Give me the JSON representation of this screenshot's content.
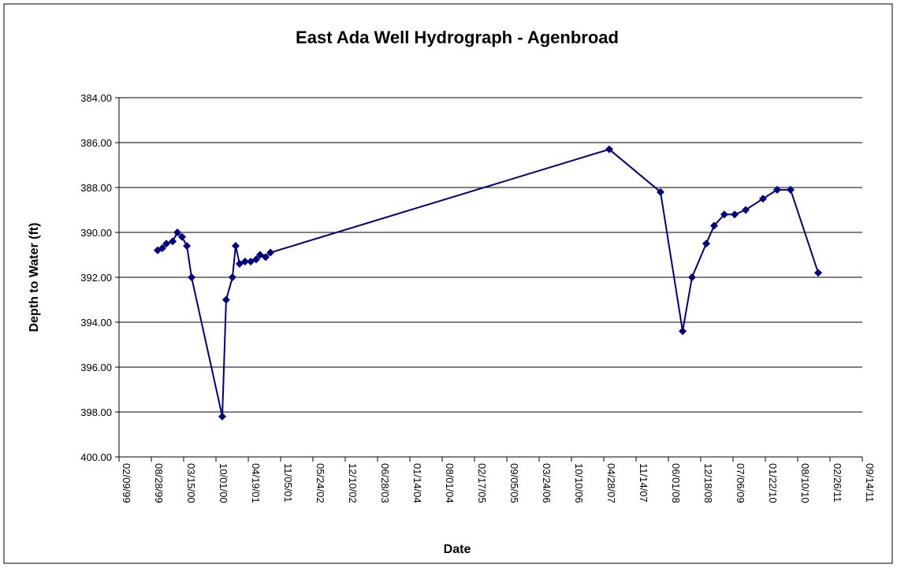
{
  "chart_data": {
    "type": "line",
    "title": "East Ada Well Hydrograph - Agenbroad",
    "x_label": "Date",
    "y_label": "Depth to Water (ft)",
    "x": [
      "10/06/99",
      "11/04/99",
      "11/29/99",
      "01/07/00",
      "02/05/00",
      "03/05/00",
      "04/04/00",
      "05/03/00",
      "11/09/00",
      "12/03/00",
      "01/11/01",
      "01/31/01",
      "02/24/01",
      "03/30/01",
      "05/04/01",
      "06/07/01",
      "07/01/01",
      "08/04/01",
      "09/03/01",
      "06/01/07",
      "04/13/08",
      "08/28/08",
      "10/25/08",
      "01/21/09",
      "03/11/09",
      "05/13/09",
      "07/16/09",
      "09/22/09",
      "01/07/10",
      "04/05/10",
      "06/27/10",
      "12/15/10"
    ],
    "series": [
      {
        "name": "Depth to Water",
        "color": "#000080",
        "values": [
          390.8,
          390.7,
          390.5,
          390.4,
          390.0,
          390.2,
          390.6,
          392.0,
          398.2,
          393.0,
          392.0,
          390.6,
          391.4,
          391.3,
          391.3,
          391.2,
          391.0,
          391.1,
          390.9,
          386.3,
          388.2,
          394.4,
          392.0,
          390.5,
          389.7,
          389.2,
          389.2,
          389.0,
          388.5,
          388.1,
          388.1,
          391.8
        ]
      }
    ],
    "xlim": [
      "02/09/99",
      "09/14/11"
    ],
    "xticks": [
      "02/09/99",
      "08/28/99",
      "03/15/00",
      "10/01/00",
      "04/19/01",
      "11/05/01",
      "05/24/02",
      "12/10/02",
      "06/28/03",
      "01/14/04",
      "08/01/04",
      "02/17/05",
      "09/05/05",
      "03/24/06",
      "10/10/06",
      "04/28/07",
      "11/14/07",
      "06/01/08",
      "12/18/08",
      "07/06/09",
      "01/22/10",
      "08/10/10",
      "02/26/11",
      "09/14/11"
    ],
    "ylim": [
      384,
      400
    ],
    "y_inverted": true,
    "yticks": [
      {
        "value": 384,
        "label": "384.00"
      },
      {
        "value": 386,
        "label": "386.00"
      },
      {
        "value": 388,
        "label": "388.00"
      },
      {
        "value": 390,
        "label": "390.00"
      },
      {
        "value": 392,
        "label": "392.00"
      },
      {
        "value": 394,
        "label": "394.00"
      },
      {
        "value": 396,
        "label": "396.00"
      },
      {
        "value": 398,
        "label": "398.00"
      },
      {
        "value": 400,
        "label": "400.00"
      }
    ],
    "grid": true
  }
}
